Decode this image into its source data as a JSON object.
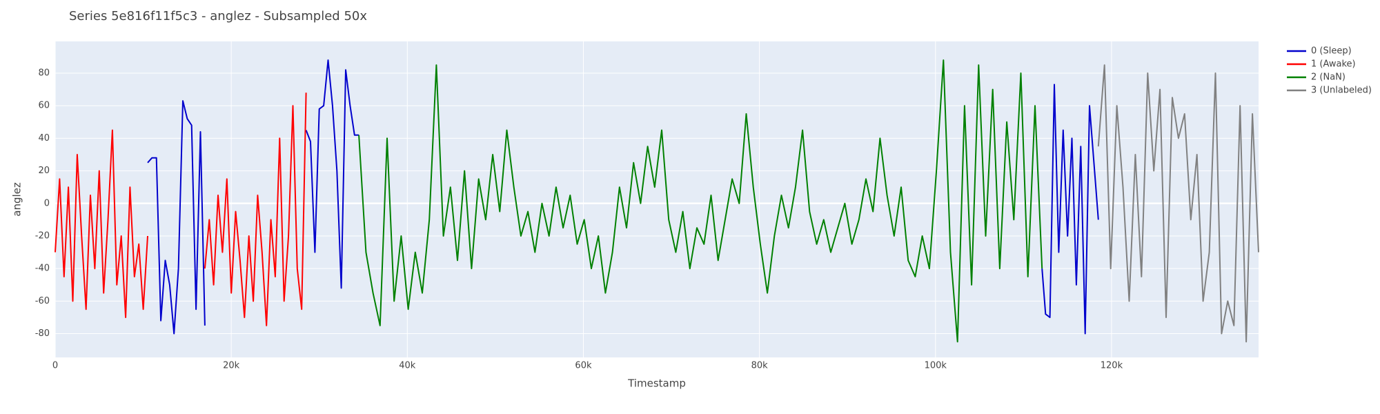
{
  "chart_data": {
    "type": "line",
    "title": "Series 5e816f11f5c3 - anglez - Subsampled 50x",
    "x_label": "Timestamp",
    "y_label": "anglez",
    "xlim": [
      0,
      136700
    ],
    "ylim": [
      -94.6,
      99.5
    ],
    "xticks": [
      0,
      {
        "value": 20000,
        "label": "20k"
      },
      {
        "value": 40000,
        "label": "40k"
      },
      {
        "value": 60000,
        "label": "60k"
      },
      {
        "value": 80000,
        "label": "80k"
      },
      {
        "value": 100000,
        "label": "100k"
      },
      {
        "value": 120000,
        "label": "120k"
      }
    ],
    "yticks": [
      -80,
      -60,
      -40,
      -20,
      0,
      20,
      40,
      60,
      80
    ],
    "grid": true,
    "series": [
      {
        "name": "0 (Sleep)",
        "color": "#0000cc",
        "x": [
          10500,
          11000,
          11500,
          12000,
          12500,
          13000,
          13500,
          14000,
          14500,
          15000,
          15500,
          16000,
          16500,
          17000,
          22000,
          28500,
          29000,
          29500,
          30000,
          30500,
          31000,
          31500,
          32000,
          32500,
          33000,
          33500,
          34000,
          34500,
          80000,
          112100,
          112500,
          113000,
          113500,
          114000,
          114500,
          115000,
          115500,
          116000,
          116500,
          117000,
          117500,
          118000,
          118500
        ],
        "values": [
          25,
          28,
          28,
          -72,
          -35,
          -50,
          -80,
          -40,
          63,
          52,
          48,
          -65,
          44,
          -75,
          null,
          45,
          38,
          -30,
          58,
          60,
          88,
          60,
          20,
          -52,
          82,
          60,
          42,
          42,
          null,
          -40,
          -68,
          -70,
          73,
          -30,
          45,
          -20,
          40,
          -50,
          35,
          -80,
          60,
          25,
          -10
        ]
      },
      {
        "name": "1 (Awake)",
        "color": "#ff0000",
        "x": [
          0,
          500,
          1000,
          1500,
          2000,
          2500,
          3000,
          3500,
          4000,
          4500,
          5000,
          5500,
          6000,
          6500,
          7000,
          7500,
          8000,
          8500,
          9000,
          9500,
          10000,
          10500,
          13500,
          17000,
          17500,
          18000,
          18500,
          19000,
          19500,
          20000,
          20500,
          21000,
          21500,
          22000,
          22500,
          23000,
          23500,
          24000,
          24500,
          25000,
          25500,
          26000,
          26500,
          27000,
          27500,
          28000,
          28500
        ],
        "values": [
          -30,
          15,
          -45,
          10,
          -60,
          30,
          -20,
          -65,
          5,
          -40,
          20,
          -55,
          -10,
          45,
          -50,
          -20,
          -70,
          10,
          -45,
          -25,
          -65,
          -20,
          null,
          -40,
          -10,
          -50,
          5,
          -30,
          15,
          -55,
          -5,
          -35,
          -70,
          -20,
          -60,
          5,
          -30,
          -75,
          -10,
          -45,
          40,
          -60,
          -20,
          60,
          -40,
          -65,
          68
        ]
      },
      {
        "name": "2 (NaN)",
        "color": "#008000",
        "x": [
          34500,
          35300,
          36100,
          36900,
          37700,
          38500,
          39300,
          40100,
          40900,
          41700,
          42500,
          43300,
          44100,
          44900,
          45700,
          46500,
          47300,
          48100,
          48900,
          49700,
          50500,
          51300,
          52100,
          52900,
          53700,
          54500,
          55300,
          56100,
          56900,
          57700,
          58500,
          59300,
          60100,
          60900,
          61700,
          62500,
          63300,
          64100,
          64900,
          65700,
          66500,
          67300,
          68100,
          68900,
          69700,
          70500,
          71300,
          72100,
          72900,
          73700,
          74500,
          75300,
          76100,
          76900,
          77700,
          78500,
          79300,
          80100,
          80900,
          81700,
          82500,
          83300,
          84100,
          84900,
          85700,
          86500,
          87300,
          88100,
          88900,
          89700,
          90500,
          91300,
          92100,
          92900,
          93700,
          94500,
          95300,
          96100,
          96900,
          97700,
          98500,
          99300,
          100100,
          100900,
          101700,
          102500,
          103300,
          104100,
          104900,
          105700,
          106500,
          107300,
          108100,
          108900,
          109700,
          110500,
          111300,
          112100
        ],
        "values": [
          42,
          -30,
          -55,
          -75,
          40,
          -60,
          -20,
          -65,
          -30,
          -55,
          -10,
          85,
          -20,
          10,
          -35,
          20,
          -40,
          15,
          -10,
          30,
          -5,
          45,
          10,
          -20,
          -5,
          -30,
          0,
          -20,
          10,
          -15,
          5,
          -25,
          -10,
          -40,
          -20,
          -55,
          -30,
          10,
          -15,
          25,
          0,
          35,
          10,
          45,
          -10,
          -30,
          -5,
          -40,
          -15,
          -25,
          5,
          -35,
          -10,
          15,
          0,
          55,
          10,
          -25,
          -55,
          -20,
          5,
          -15,
          10,
          45,
          -5,
          -25,
          -10,
          -30,
          -15,
          0,
          -25,
          -10,
          15,
          -5,
          40,
          5,
          -20,
          10,
          -35,
          -45,
          -20,
          -40,
          20,
          88,
          -30,
          -85,
          60,
          -50,
          85,
          -20,
          70,
          -40,
          50,
          -10,
          80,
          -45,
          60,
          -40
        ]
      },
      {
        "name": "3 (Unlabeled)",
        "color": "#808080",
        "x": [
          118500,
          119200,
          119900,
          120600,
          121300,
          122000,
          122700,
          123400,
          124100,
          124800,
          125500,
          126200,
          126900,
          127600,
          128300,
          129000,
          129700,
          130400,
          131100,
          131800,
          132500,
          133200,
          133900,
          134600,
          135300,
          136000,
          136700
        ],
        "values": [
          35,
          85,
          -40,
          60,
          10,
          -60,
          30,
          -45,
          80,
          20,
          70,
          -70,
          65,
          40,
          55,
          -10,
          30,
          -60,
          -30,
          80,
          -80,
          -60,
          -75,
          60,
          -85,
          55,
          -30
        ]
      }
    ]
  }
}
